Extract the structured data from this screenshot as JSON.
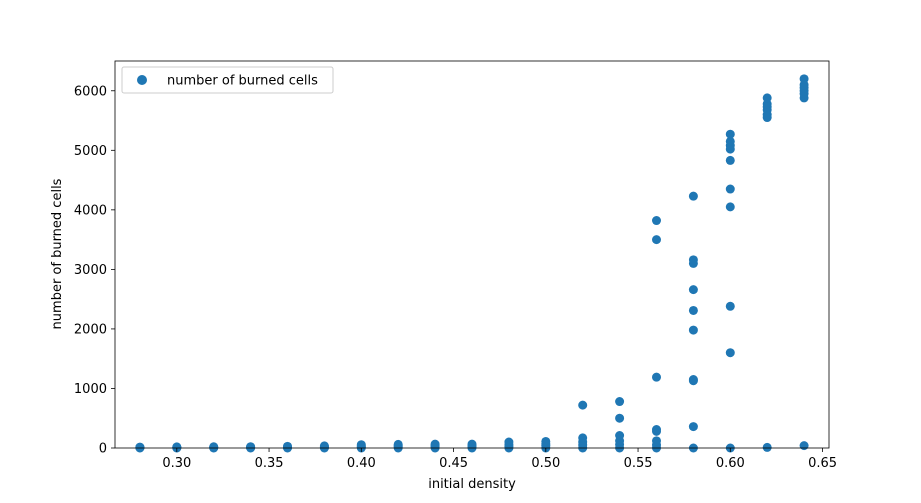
{
  "chart_data": {
    "type": "scatter",
    "title": "",
    "xlabel": "initial density",
    "ylabel": "number of burned cells",
    "xlim": [
      0.2665,
      0.6535
    ],
    "ylim": [
      0,
      6500
    ],
    "x_ticks": [
      0.3,
      0.35,
      0.4,
      0.45,
      0.5,
      0.55,
      0.6,
      0.65
    ],
    "x_tick_labels": [
      "0.30",
      "0.35",
      "0.40",
      "0.45",
      "0.50",
      "0.55",
      "0.60",
      "0.65"
    ],
    "y_ticks": [
      0,
      1000,
      2000,
      3000,
      4000,
      5000,
      6000
    ],
    "y_tick_labels": [
      "0",
      "1000",
      "2000",
      "3000",
      "4000",
      "5000",
      "6000"
    ],
    "grid": false,
    "legend_position": "top-left",
    "series": [
      {
        "name": "number of burned cells",
        "color": "#1f77b4",
        "points": [
          [
            0.28,
            0
          ],
          [
            0.28,
            5
          ],
          [
            0.28,
            10
          ],
          [
            0.28,
            15
          ],
          [
            0.3,
            0
          ],
          [
            0.3,
            5
          ],
          [
            0.3,
            12
          ],
          [
            0.3,
            18
          ],
          [
            0.32,
            0
          ],
          [
            0.32,
            6
          ],
          [
            0.32,
            12
          ],
          [
            0.32,
            20
          ],
          [
            0.34,
            0
          ],
          [
            0.34,
            8
          ],
          [
            0.34,
            15
          ],
          [
            0.34,
            22
          ],
          [
            0.36,
            0
          ],
          [
            0.36,
            10
          ],
          [
            0.36,
            20
          ],
          [
            0.36,
            28
          ],
          [
            0.38,
            0
          ],
          [
            0.38,
            12
          ],
          [
            0.38,
            25
          ],
          [
            0.38,
            35
          ],
          [
            0.4,
            0
          ],
          [
            0.4,
            15
          ],
          [
            0.4,
            35
          ],
          [
            0.4,
            55
          ],
          [
            0.42,
            0
          ],
          [
            0.42,
            20
          ],
          [
            0.42,
            40
          ],
          [
            0.42,
            60
          ],
          [
            0.44,
            0
          ],
          [
            0.44,
            25
          ],
          [
            0.44,
            45
          ],
          [
            0.44,
            65
          ],
          [
            0.46,
            0
          ],
          [
            0.46,
            20
          ],
          [
            0.46,
            40
          ],
          [
            0.46,
            65
          ],
          [
            0.48,
            0
          ],
          [
            0.48,
            30
          ],
          [
            0.48,
            60
          ],
          [
            0.48,
            100
          ],
          [
            0.5,
            0
          ],
          [
            0.5,
            40
          ],
          [
            0.5,
            70
          ],
          [
            0.5,
            110
          ],
          [
            0.52,
            0
          ],
          [
            0.52,
            50
          ],
          [
            0.52,
            100
          ],
          [
            0.52,
            170
          ],
          [
            0.52,
            720
          ],
          [
            0.54,
            0
          ],
          [
            0.54,
            60
          ],
          [
            0.54,
            120
          ],
          [
            0.54,
            210
          ],
          [
            0.54,
            500
          ],
          [
            0.54,
            780
          ],
          [
            0.56,
            0
          ],
          [
            0.56,
            50
          ],
          [
            0.56,
            120
          ],
          [
            0.56,
            280
          ],
          [
            0.56,
            310
          ],
          [
            0.56,
            1190
          ],
          [
            0.56,
            3500
          ],
          [
            0.56,
            3820
          ],
          [
            0.58,
            0
          ],
          [
            0.58,
            360
          ],
          [
            0.58,
            1130
          ],
          [
            0.58,
            1150
          ],
          [
            0.58,
            1980
          ],
          [
            0.58,
            2310
          ],
          [
            0.58,
            2660
          ],
          [
            0.58,
            3100
          ],
          [
            0.58,
            3160
          ],
          [
            0.58,
            4230
          ],
          [
            0.6,
            0
          ],
          [
            0.6,
            1600
          ],
          [
            0.6,
            2380
          ],
          [
            0.6,
            4050
          ],
          [
            0.6,
            4350
          ],
          [
            0.6,
            4830
          ],
          [
            0.6,
            5020
          ],
          [
            0.6,
            5080
          ],
          [
            0.6,
            5150
          ],
          [
            0.6,
            5270
          ],
          [
            0.62,
            10
          ],
          [
            0.62,
            5550
          ],
          [
            0.62,
            5600
          ],
          [
            0.62,
            5680
          ],
          [
            0.62,
            5730
          ],
          [
            0.62,
            5780
          ],
          [
            0.62,
            5880
          ],
          [
            0.64,
            40
          ],
          [
            0.64,
            5880
          ],
          [
            0.64,
            5950
          ],
          [
            0.64,
            6000
          ],
          [
            0.64,
            6050
          ],
          [
            0.64,
            6100
          ],
          [
            0.64,
            6200
          ]
        ]
      }
    ]
  }
}
